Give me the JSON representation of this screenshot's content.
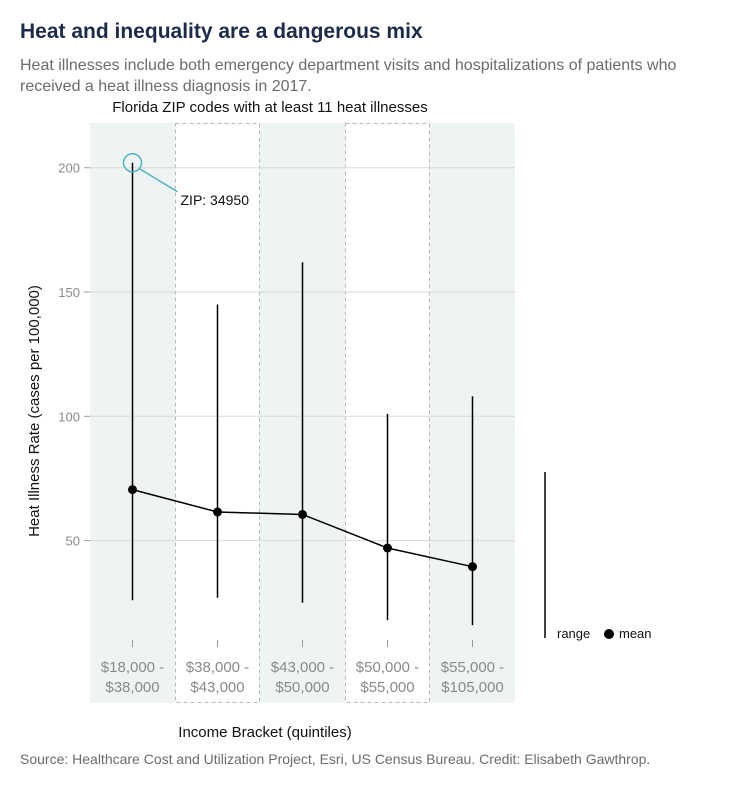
{
  "header": {
    "title": "Heat and inequality are a dangerous mix",
    "subtitle": "Heat illnesses include both emergency department visits and hospitalizations of patients who received a heat illness diagnosis in 2017."
  },
  "footer": {
    "source": "Source: Healthcare Cost and Utilization Project, Esri, US Census Bureau. Credit: Elisabeth Gawthrop."
  },
  "colors": {
    "band": "#eef4f3",
    "accent": "#4fb3bf",
    "grid": "#d9d9d9",
    "ink": "#000000",
    "muted": "#8a8a8a"
  },
  "chart_data": {
    "type": "line",
    "title": "Florida ZIP codes with at least 11 heat illnesses",
    "xlabel": "Income Bracket (quintiles)",
    "ylabel": "Heat Illness Rate (cases per 100,000)",
    "categories": [
      [
        "$18,000 -",
        "$38,000"
      ],
      [
        "$38,000 -",
        "$43,000"
      ],
      [
        "$43,000 -",
        "$50,000"
      ],
      [
        "$50,000 -",
        "$55,000"
      ],
      [
        "$55,000 -",
        "$105,000"
      ]
    ],
    "mean": [
      70.5,
      61.5,
      60.5,
      47,
      39.5
    ],
    "range_min": [
      26,
      27,
      25,
      18,
      16
    ],
    "range_max": [
      202,
      145,
      162,
      101,
      108
    ],
    "ylim": [
      10,
      218
    ],
    "yticks": [
      50,
      100,
      150,
      200
    ],
    "grid": true,
    "annotation": {
      "label": "ZIP: 34950",
      "category_index": 0,
      "value": 202
    },
    "legend": {
      "position": "right",
      "items": [
        "range",
        "mean"
      ]
    }
  }
}
